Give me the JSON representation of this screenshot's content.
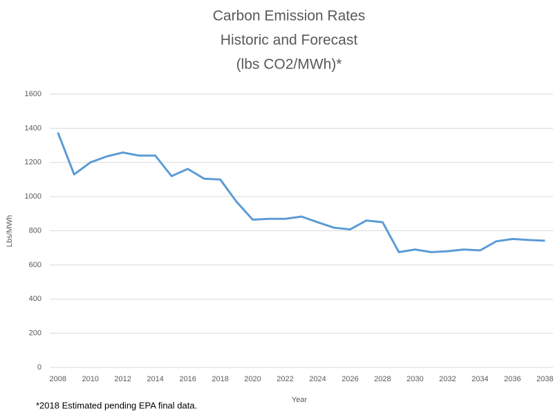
{
  "chart_data": {
    "type": "line",
    "title": [
      "Carbon Emission Rates",
      "Historic and Forecast",
      "(lbs CO2/MWh)*"
    ],
    "x_label": "Year",
    "y_label": "Lbs/MWh",
    "footnote": "*2018 Estimated pending EPA final data.",
    "x": [
      2008,
      2009,
      2010,
      2011,
      2012,
      2013,
      2014,
      2015,
      2016,
      2017,
      2018,
      2019,
      2020,
      2021,
      2022,
      2023,
      2024,
      2025,
      2026,
      2027,
      2028,
      2029,
      2030,
      2031,
      2032,
      2033,
      2034,
      2035,
      2036,
      2037,
      2038
    ],
    "series": [
      {
        "name": "Carbon Emission Rate",
        "color": "#5b9bd5",
        "values": [
          1375,
          1130,
          1200,
          1235,
          1258,
          1240,
          1240,
          1120,
          1162,
          1105,
          1100,
          970,
          865,
          870,
          870,
          883,
          850,
          818,
          808,
          860,
          850,
          675,
          690,
          675,
          680,
          690,
          685,
          738,
          752,
          746,
          742
        ]
      }
    ],
    "xlim": [
      2007.5,
      2038.5
    ],
    "xticks": [
      2008,
      2010,
      2012,
      2014,
      2016,
      2018,
      2020,
      2022,
      2024,
      2026,
      2028,
      2030,
      2032,
      2034,
      2036,
      2038
    ],
    "ylim": [
      0,
      1600
    ],
    "yticks": [
      0,
      200,
      400,
      600,
      800,
      1000,
      1200,
      1400,
      1600
    ],
    "grid": true
  }
}
